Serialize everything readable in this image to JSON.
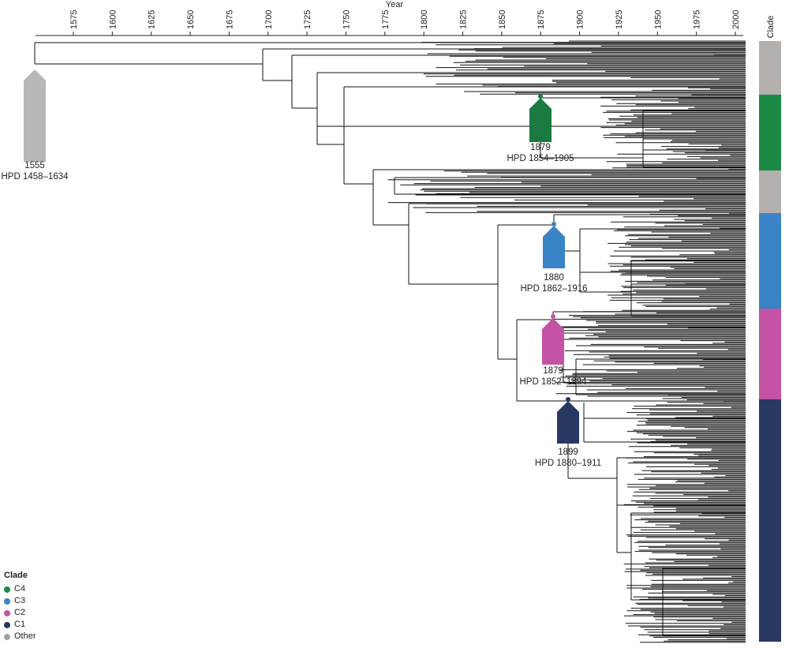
{
  "axis": {
    "title": "Year",
    "ticks": [
      "1575",
      "1600",
      "1625",
      "1650",
      "1675",
      "1700",
      "1725",
      "1750",
      "1775",
      "1800",
      "1825",
      "1850",
      "1875",
      "1900",
      "1925",
      "1950",
      "1975",
      "2000"
    ]
  },
  "clade_bar": {
    "title": "Clade",
    "segments": [
      {
        "clade": "Other",
        "color": "#b3b0ae"
      },
      {
        "clade": "C4",
        "color": "#1b8a45"
      },
      {
        "clade": "Other",
        "color": "#b3b0ae"
      },
      {
        "clade": "C3",
        "color": "#3a83c6"
      },
      {
        "clade": "C2",
        "color": "#c453a6"
      },
      {
        "clade": "C1",
        "color": "#283863"
      }
    ]
  },
  "annotations": [
    {
      "name": "root",
      "year": "1555",
      "hpd": "HPD 1458–1634",
      "color": "#b8b8b8"
    },
    {
      "name": "c4",
      "year": "1879",
      "hpd": "HPD 1854–1905",
      "color": "#1b7a40"
    },
    {
      "name": "c3",
      "year": "1880",
      "hpd": "HPD 1862–1916",
      "color": "#3a83c6"
    },
    {
      "name": "c2",
      "year": "1879",
      "hpd": "HPD 1852–1894",
      "color": "#c453a6"
    },
    {
      "name": "c1",
      "year": "1899",
      "hpd": "HPD 1880–1911",
      "color": "#283863"
    }
  ],
  "legend": {
    "title": "Clade",
    "items": [
      {
        "label": "C4",
        "color": "#1b8a45"
      },
      {
        "label": "C3",
        "color": "#3a83c6"
      },
      {
        "label": "C2",
        "color": "#c453a6"
      },
      {
        "label": "C1",
        "color": "#283863"
      },
      {
        "label": "Other",
        "color": "#a0a0a0"
      }
    ]
  }
}
